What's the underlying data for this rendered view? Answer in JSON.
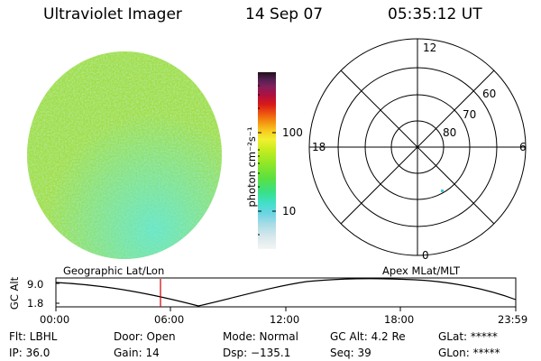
{
  "header": {
    "instrument": "Ultraviolet Imager",
    "date": "14 Sep 07",
    "time": "05:35:12 UT"
  },
  "colorbar": {
    "unit_label": "photon cm⁻²s⁻¹",
    "scale": "log",
    "tick_labels": [
      "100",
      "10"
    ],
    "colors": [
      "#f0f0f0",
      "#d8e8ec",
      "#a8dce6",
      "#6ed4e4",
      "#40e0c8",
      "#38e08a",
      "#5ae040",
      "#8ee628",
      "#c6ec1e",
      "#f2f030",
      "#f8c820",
      "#f49010",
      "#ec5010",
      "#d81818",
      "#b01040",
      "#80205a",
      "#502050",
      "#201018"
    ]
  },
  "polar_plot": {
    "mlt_labels": {
      "top": "12",
      "right": "6",
      "bottom": "0",
      "left": "18"
    },
    "lat_labels": [
      "60",
      "70",
      "80"
    ]
  },
  "alt_plot": {
    "left_title": "Geographic Lat/Lon",
    "right_title": "Apex MLat/MLT",
    "ylabel": "GC Alt",
    "y_ticks": [
      "9.0",
      "1.8"
    ],
    "x_ticks": [
      "00:00",
      "06:00",
      "12:00",
      "18:00",
      "23:59"
    ],
    "marker_time": "05:35:12"
  },
  "status": {
    "flt": "Flt: LBHL",
    "ip": "IP: 36.0",
    "door": "Door: Open",
    "gain": "Gain: 14",
    "mode": "Mode: Normal",
    "dsp": "Dsp: −135.1",
    "gcalt": "GC Alt: 4.2 Re",
    "seq": "Seq: 39",
    "glat": "GLat: *****",
    "glon": "GLon: *****"
  },
  "colors": {
    "marker": "#cc0000",
    "disk_base": "#a8e03a"
  }
}
